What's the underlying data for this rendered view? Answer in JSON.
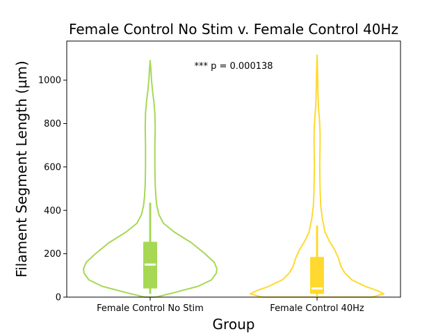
{
  "chart_data": {
    "type": "violin",
    "title": "Female Control No Stim v. Female Control 40Hz",
    "xlabel": "Group",
    "ylabel": "Filament Segment Length (µm)",
    "ylim": [
      0,
      1180
    ],
    "yticks": [
      0,
      200,
      400,
      600,
      800,
      1000
    ],
    "yticklabels": [
      "0",
      "200",
      "400",
      "600",
      "800",
      "1000"
    ],
    "categories": [
      "Female Control No Stim",
      "Female Control 40Hz"
    ],
    "annotation": "*** p = 0.000138",
    "grid": false,
    "series": [
      {
        "color": "#a6d854",
        "min": 0,
        "max": 1090,
        "box": {
          "q1": 40,
          "median": 150,
          "q3": 255,
          "whisker_low": 15,
          "whisker_high": 435
        },
        "density": [
          [
            0,
            0.08
          ],
          [
            20,
            0.35
          ],
          [
            50,
            0.72
          ],
          [
            80,
            0.92
          ],
          [
            110,
            0.99
          ],
          [
            130,
            1.0
          ],
          [
            160,
            0.96
          ],
          [
            200,
            0.82
          ],
          [
            250,
            0.62
          ],
          [
            300,
            0.36
          ],
          [
            340,
            0.2
          ],
          [
            380,
            0.13
          ],
          [
            420,
            0.1
          ],
          [
            460,
            0.085
          ],
          [
            520,
            0.075
          ],
          [
            600,
            0.07
          ],
          [
            700,
            0.07
          ],
          [
            780,
            0.075
          ],
          [
            850,
            0.07
          ],
          [
            900,
            0.055
          ],
          [
            950,
            0.035
          ],
          [
            1000,
            0.02
          ],
          [
            1050,
            0.01
          ],
          [
            1090,
            0.0
          ]
        ]
      },
      {
        "color": "#ffd92f",
        "min": 0,
        "max": 1115,
        "box": {
          "q1": 15,
          "median": 40,
          "q3": 185,
          "whisker_low": 5,
          "whisker_high": 330
        },
        "density": [
          [
            0,
            0.82
          ],
          [
            15,
            1.0
          ],
          [
            30,
            0.9
          ],
          [
            50,
            0.72
          ],
          [
            80,
            0.52
          ],
          [
            110,
            0.42
          ],
          [
            140,
            0.36
          ],
          [
            180,
            0.32
          ],
          [
            220,
            0.26
          ],
          [
            260,
            0.18
          ],
          [
            300,
            0.12
          ],
          [
            360,
            0.08
          ],
          [
            420,
            0.055
          ],
          [
            500,
            0.045
          ],
          [
            600,
            0.04
          ],
          [
            700,
            0.045
          ],
          [
            760,
            0.045
          ],
          [
            820,
            0.035
          ],
          [
            880,
            0.02
          ],
          [
            950,
            0.012
          ],
          [
            1050,
            0.006
          ],
          [
            1115,
            0.0
          ]
        ]
      }
    ]
  }
}
